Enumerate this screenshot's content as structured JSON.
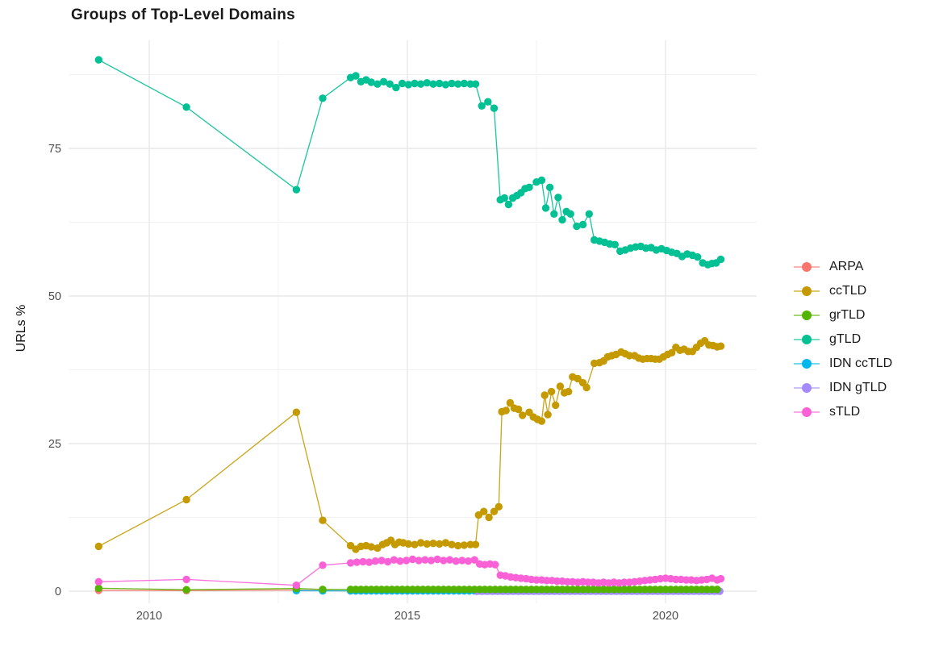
{
  "title": "Groups of Top-Level Domains",
  "chart_data": {
    "type": "line",
    "title": "Groups of Top-Level Domains",
    "xlabel": "",
    "ylabel": "URLs %",
    "x_ticks": [
      2010,
      2015,
      2020
    ],
    "x_minor_ticks": [
      2012.5,
      2017.5
    ],
    "y_ticks": [
      0,
      25,
      50,
      75
    ],
    "y_minor_ticks": [
      12.5,
      37.5,
      62.5,
      87.5
    ],
    "x_range": [
      2008.45,
      2021.8
    ],
    "y_range": [
      -2,
      93
    ],
    "grid": "on",
    "legend_position": "right",
    "colors": {
      "major_grid": "#e4e4e4",
      "minor_grid": "#f2f2f2",
      "tick_text": "#4d4d4d",
      "title_text": "#1a1a1a"
    },
    "series": [
      {
        "name": "ARPA",
        "color": "#F8766D",
        "draw_order": 1,
        "points": [
          [
            2009.02,
            0.15
          ],
          [
            2010.72,
            0.1
          ],
          [
            2012.85,
            0.2
          ],
          [
            2013.36,
            0.1
          ]
        ],
        "runs": [
          {
            "from": 2013.9,
            "to": 2021.07,
            "step": 0.1,
            "value": 0.05
          }
        ]
      },
      {
        "name": "ccTLD",
        "color": "#C49A00",
        "draw_order": 6,
        "points": [
          [
            2009.02,
            7.6
          ],
          [
            2010.72,
            15.5
          ],
          [
            2012.85,
            30.3
          ],
          [
            2013.36,
            12
          ],
          [
            2013.9,
            7.7
          ],
          [
            2014,
            7.1
          ],
          [
            2014.1,
            7.6
          ],
          [
            2014.2,
            7.7
          ],
          [
            2014.3,
            7.5
          ],
          [
            2014.42,
            7.3
          ],
          [
            2014.52,
            7.9
          ],
          [
            2014.6,
            8.2
          ],
          [
            2014.68,
            8.6
          ],
          [
            2014.76,
            7.9
          ],
          [
            2014.84,
            8.3
          ],
          [
            2014.92,
            8.2
          ],
          [
            2015.02,
            8
          ],
          [
            2015.14,
            7.9
          ],
          [
            2015.26,
            8.2
          ],
          [
            2015.38,
            8
          ],
          [
            2015.5,
            8.1
          ],
          [
            2015.62,
            8
          ],
          [
            2015.74,
            8.2
          ],
          [
            2015.86,
            7.9
          ],
          [
            2015.98,
            7.7
          ],
          [
            2016.1,
            7.8
          ],
          [
            2016.22,
            7.9
          ],
          [
            2016.32,
            7.9
          ],
          [
            2016.38,
            12.9
          ],
          [
            2016.48,
            13.5
          ],
          [
            2016.58,
            12.5
          ],
          [
            2016.68,
            13.5
          ],
          [
            2016.77,
            14.3
          ],
          [
            2016.83,
            30.4
          ],
          [
            2016.91,
            30.6
          ],
          [
            2016.99,
            31.9
          ],
          [
            2017.07,
            31
          ],
          [
            2017.15,
            30.8
          ],
          [
            2017.23,
            29.8
          ],
          [
            2017.36,
            30.3
          ],
          [
            2017.44,
            29.5
          ],
          [
            2017.52,
            29.1
          ],
          [
            2017.6,
            28.8
          ],
          [
            2017.66,
            33.2
          ],
          [
            2017.72,
            29.9
          ],
          [
            2017.79,
            33.8
          ],
          [
            2017.87,
            31.5
          ],
          [
            2017.96,
            34.7
          ],
          [
            2018.04,
            33.6
          ],
          [
            2018.12,
            33.8
          ],
          [
            2018.2,
            36.3
          ],
          [
            2018.3,
            36
          ],
          [
            2018.4,
            35.3
          ],
          [
            2018.47,
            34.5
          ],
          [
            2018.62,
            38.6
          ],
          [
            2018.72,
            38.7
          ],
          [
            2018.8,
            39
          ],
          [
            2018.88,
            39.7
          ],
          [
            2018.96,
            39.9
          ],
          [
            2019.04,
            40.1
          ],
          [
            2019.14,
            40.5
          ],
          [
            2019.22,
            40.2
          ],
          [
            2019.3,
            39.9
          ],
          [
            2019.4,
            39.9
          ],
          [
            2019.48,
            39.5
          ],
          [
            2019.56,
            39.3
          ],
          [
            2019.64,
            39.4
          ],
          [
            2019.72,
            39.4
          ],
          [
            2019.8,
            39.3
          ],
          [
            2019.88,
            39.3
          ],
          [
            2019.96,
            39.7
          ],
          [
            2020.04,
            40.1
          ],
          [
            2020.12,
            40.4
          ],
          [
            2020.2,
            41.3
          ],
          [
            2020.28,
            40.8
          ],
          [
            2020.36,
            41
          ],
          [
            2020.44,
            40.6
          ],
          [
            2020.52,
            40.6
          ],
          [
            2020.6,
            41.3
          ],
          [
            2020.68,
            42
          ],
          [
            2020.76,
            42.4
          ],
          [
            2020.84,
            41.7
          ],
          [
            2020.92,
            41.6
          ],
          [
            2021,
            41.4
          ],
          [
            2021.07,
            41.5
          ]
        ],
        "runs": []
      },
      {
        "name": "grTLD",
        "color": "#53B400",
        "draw_order": 4,
        "points": [
          [
            2009.02,
            0.5
          ],
          [
            2010.72,
            0.25
          ],
          [
            2012.85,
            0.45
          ],
          [
            2013.36,
            0.3
          ]
        ],
        "runs": [
          {
            "from": 2013.9,
            "to": 2021.07,
            "step": 0.1,
            "value": 0.3
          }
        ]
      },
      {
        "name": "gTLD",
        "color": "#00C094",
        "draw_order": 7,
        "points": [
          [
            2009.02,
            90
          ],
          [
            2010.72,
            82
          ],
          [
            2012.85,
            68
          ],
          [
            2013.36,
            83.5
          ],
          [
            2013.9,
            87
          ],
          [
            2014,
            87.3
          ],
          [
            2014.1,
            86.3
          ],
          [
            2014.2,
            86.6
          ],
          [
            2014.3,
            86.2
          ],
          [
            2014.42,
            85.9
          ],
          [
            2014.54,
            86.3
          ],
          [
            2014.66,
            85.9
          ],
          [
            2014.78,
            85.3
          ],
          [
            2014.9,
            86
          ],
          [
            2015.02,
            85.8
          ],
          [
            2015.14,
            86
          ],
          [
            2015.26,
            85.9
          ],
          [
            2015.38,
            86.1
          ],
          [
            2015.5,
            85.9
          ],
          [
            2015.62,
            86
          ],
          [
            2015.74,
            85.8
          ],
          [
            2015.86,
            86
          ],
          [
            2015.98,
            85.9
          ],
          [
            2016.1,
            86
          ],
          [
            2016.22,
            85.9
          ],
          [
            2016.32,
            85.9
          ],
          [
            2016.44,
            82.2
          ],
          [
            2016.56,
            82.9
          ],
          [
            2016.68,
            81.8
          ],
          [
            2016.8,
            66.3
          ],
          [
            2016.88,
            66.6
          ],
          [
            2016.96,
            65.5
          ],
          [
            2017.04,
            66.6
          ],
          [
            2017.12,
            67
          ],
          [
            2017.2,
            67.5
          ],
          [
            2017.28,
            68.2
          ],
          [
            2017.36,
            68.4
          ],
          [
            2017.5,
            69.3
          ],
          [
            2017.6,
            69.6
          ],
          [
            2017.68,
            64.9
          ],
          [
            2017.76,
            68.4
          ],
          [
            2017.84,
            63.9
          ],
          [
            2017.92,
            66.7
          ],
          [
            2018,
            62.9
          ],
          [
            2018.08,
            64.3
          ],
          [
            2018.16,
            63.9
          ],
          [
            2018.28,
            61.8
          ],
          [
            2018.4,
            62.1
          ],
          [
            2018.52,
            63.9
          ],
          [
            2018.62,
            59.5
          ],
          [
            2018.72,
            59.3
          ],
          [
            2018.82,
            59.1
          ],
          [
            2018.92,
            58.8
          ],
          [
            2019.02,
            58.7
          ],
          [
            2019.12,
            57.6
          ],
          [
            2019.22,
            57.8
          ],
          [
            2019.32,
            58.1
          ],
          [
            2019.42,
            58.3
          ],
          [
            2019.52,
            58.4
          ],
          [
            2019.62,
            58.1
          ],
          [
            2019.72,
            58.2
          ],
          [
            2019.82,
            57.8
          ],
          [
            2019.92,
            58
          ],
          [
            2020.02,
            57.7
          ],
          [
            2020.12,
            57.4
          ],
          [
            2020.22,
            57.2
          ],
          [
            2020.32,
            56.7
          ],
          [
            2020.42,
            57.1
          ],
          [
            2020.52,
            56.9
          ],
          [
            2020.62,
            56.6
          ],
          [
            2020.72,
            55.6
          ],
          [
            2020.82,
            55.3
          ],
          [
            2020.9,
            55.5
          ],
          [
            2020.98,
            55.6
          ],
          [
            2021.07,
            56.2
          ]
        ],
        "runs": []
      },
      {
        "name": "IDN ccTLD",
        "color": "#00B6EB",
        "draw_order": 2,
        "points": [
          [
            2012.85,
            0.1
          ],
          [
            2013.36,
            0.05
          ]
        ],
        "runs": [
          {
            "from": 2013.9,
            "to": 2021.07,
            "step": 0.1,
            "value": 0.05
          }
        ]
      },
      {
        "name": "IDN gTLD",
        "color": "#A58AFF",
        "draw_order": 3,
        "points": [],
        "runs": [
          {
            "from": 2016.35,
            "to": 2021.07,
            "step": 0.1,
            "value": 0
          }
        ]
      },
      {
        "name": "sTLD",
        "color": "#FB61D7",
        "draw_order": 5,
        "points": [
          [
            2009.02,
            1.6
          ],
          [
            2010.72,
            2
          ],
          [
            2012.85,
            1
          ],
          [
            2013.36,
            4.4
          ],
          [
            2013.9,
            4.8
          ],
          [
            2014.02,
            4.9
          ],
          [
            2014.14,
            5
          ],
          [
            2014.26,
            4.9
          ],
          [
            2014.38,
            5.1
          ],
          [
            2014.5,
            5.2
          ],
          [
            2014.62,
            5
          ],
          [
            2014.74,
            5.3
          ],
          [
            2014.86,
            5.1
          ],
          [
            2014.98,
            5.2
          ],
          [
            2015.1,
            5.4
          ],
          [
            2015.22,
            5.2
          ],
          [
            2015.34,
            5.3
          ],
          [
            2015.46,
            5.2
          ],
          [
            2015.58,
            5.4
          ],
          [
            2015.7,
            5.2
          ],
          [
            2015.82,
            5.3
          ],
          [
            2015.94,
            5.1
          ],
          [
            2016.06,
            5.2
          ],
          [
            2016.18,
            5.1
          ],
          [
            2016.3,
            5.3
          ],
          [
            2016.4,
            4.6
          ],
          [
            2016.5,
            4.5
          ],
          [
            2016.6,
            4.6
          ],
          [
            2016.7,
            4.5
          ],
          [
            2016.8,
            2.7
          ],
          [
            2016.9,
            2.6
          ],
          [
            2017,
            2.4
          ],
          [
            2017.1,
            2.3
          ],
          [
            2017.2,
            2.2
          ],
          [
            2017.3,
            2.1
          ],
          [
            2017.4,
            2
          ],
          [
            2017.5,
            1.9
          ],
          [
            2017.6,
            1.9
          ],
          [
            2017.7,
            1.8
          ],
          [
            2017.8,
            1.8
          ],
          [
            2017.9,
            1.7
          ],
          [
            2018,
            1.7
          ],
          [
            2018.1,
            1.6
          ],
          [
            2018.2,
            1.6
          ],
          [
            2018.3,
            1.5
          ],
          [
            2018.4,
            1.6
          ],
          [
            2018.5,
            1.5
          ],
          [
            2018.6,
            1.5
          ],
          [
            2018.7,
            1.4
          ],
          [
            2018.8,
            1.5
          ],
          [
            2018.9,
            1.4
          ],
          [
            2019,
            1.5
          ],
          [
            2019.1,
            1.4
          ],
          [
            2019.2,
            1.5
          ],
          [
            2019.3,
            1.5
          ],
          [
            2019.4,
            1.6
          ],
          [
            2019.5,
            1.7
          ],
          [
            2019.6,
            1.8
          ],
          [
            2019.7,
            1.9
          ],
          [
            2019.8,
            2
          ],
          [
            2019.9,
            2.1
          ],
          [
            2020,
            2.2
          ],
          [
            2020.1,
            2.1
          ],
          [
            2020.2,
            2
          ],
          [
            2020.3,
            2
          ],
          [
            2020.4,
            1.9
          ],
          [
            2020.5,
            1.9
          ],
          [
            2020.6,
            1.8
          ],
          [
            2020.7,
            1.9
          ],
          [
            2020.8,
            2
          ],
          [
            2020.9,
            2.2
          ],
          [
            2021,
            1.9
          ],
          [
            2021.07,
            2.1
          ]
        ],
        "runs": []
      }
    ]
  }
}
